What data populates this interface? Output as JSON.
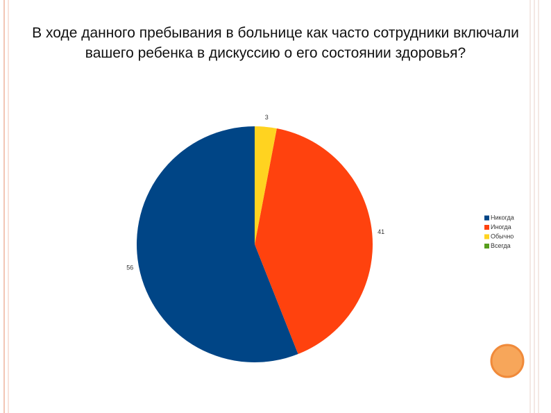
{
  "chart_data": {
    "type": "pie",
    "title": "В ходе данного пребывания в больнице как часто сотрудники включали вашего ребенка в дискуссию о его состоянии здоровья?",
    "categories": [
      "Никогда",
      "Иногда",
      "Обычно",
      "Всегда"
    ],
    "values": [
      56,
      41,
      3,
      0
    ],
    "colors": [
      "#004586",
      "#ff420e",
      "#ffd320",
      "#579d1c"
    ],
    "legend": "right"
  }
}
